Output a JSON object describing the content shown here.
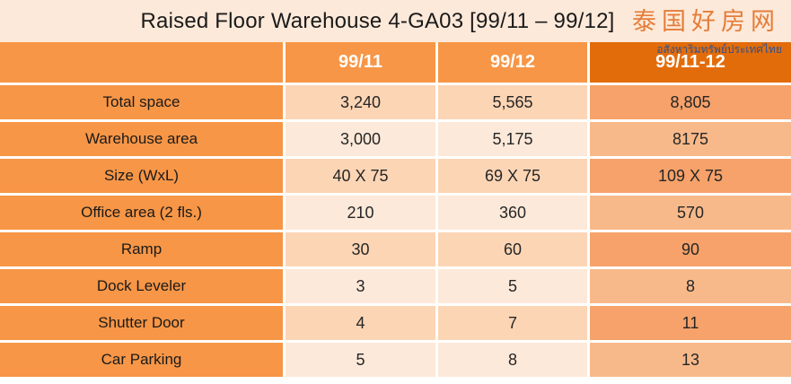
{
  "title": "Raised Floor Warehouse 4-GA03   [99/11 – 99/12]",
  "watermark": {
    "cjk": "泰国好房网",
    "thai": "อสังหาริมทรัพย์ประเทศไทย"
  },
  "table": {
    "headers": [
      "",
      "99/11",
      "99/12",
      "99/11-12"
    ],
    "rows": [
      {
        "label": "Total space",
        "a": "3,240",
        "b": "5,565",
        "total": "8,805"
      },
      {
        "label": "Warehouse area",
        "a": "3,000",
        "b": "5,175",
        "total": "8175"
      },
      {
        "label": "Size (WxL)",
        "a": "40 X 75",
        "b": "69 X 75",
        "total": "109 X 75"
      },
      {
        "label": "Office area (2 fls.)",
        "a": "210",
        "b": "360",
        "total": "570"
      },
      {
        "label": "Ramp",
        "a": "30",
        "b": "60",
        "total": "90"
      },
      {
        "label": "Dock Leveler",
        "a": "3",
        "b": "5",
        "total": "8"
      },
      {
        "label": "Shutter Door",
        "a": "4",
        "b": "7",
        "total": "11"
      },
      {
        "label": "Car Parking",
        "a": "5",
        "b": "8",
        "total": "13"
      }
    ]
  },
  "colors": {
    "accent_orange": "#f79646",
    "accent_dark_orange": "#e36c0a",
    "light_peach": "#fde9d9",
    "peach": "#fcd5b5"
  }
}
